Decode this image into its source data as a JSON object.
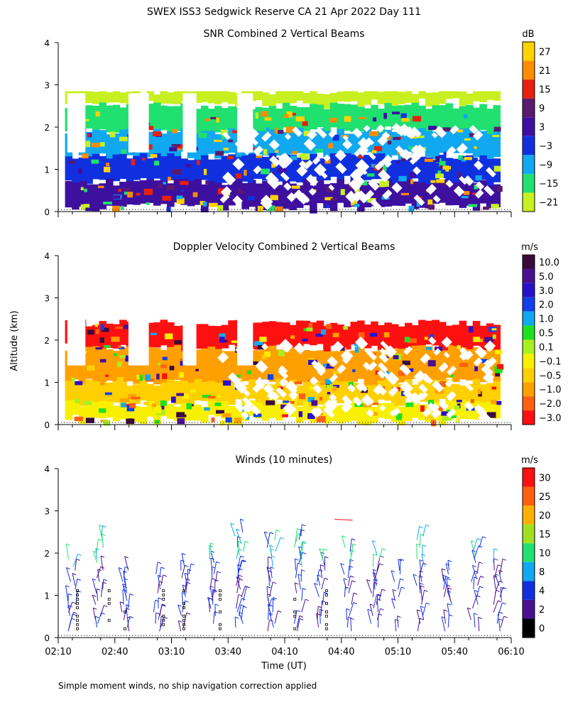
{
  "header": {
    "title": "SWEX ISS3 Sedgwick Reserve CA  21 Apr 2022 Day 111"
  },
  "footer": {
    "note": "Simple moment winds, no ship navigation correction applied"
  },
  "shared_axes": {
    "ylabel": "Altitude (km)",
    "xlabel": "Time (UT)",
    "x_ticks": [
      "02:10",
      "02:40",
      "03:10",
      "03:40",
      "04:10",
      "04:40",
      "05:10",
      "05:40",
      "06:10"
    ],
    "y_ticks": [
      "0",
      "1",
      "2",
      "3",
      "4"
    ],
    "ylim": [
      0,
      4
    ]
  },
  "chart_data": [
    {
      "type": "heatmap",
      "title": "SNR Combined 2 Vertical Beams",
      "units": "dB",
      "colorbar_labels": [
        "27",
        "21",
        "15",
        "9",
        "3",
        "−3",
        "−9",
        "−15",
        "−21"
      ],
      "colorbar_colors": [
        "#ffd200",
        "#ff8c00",
        "#e8200e",
        "#5a1a6e",
        "#3e10a0",
        "#1030e0",
        "#10a8f0",
        "#20e070",
        "#c8f020"
      ],
      "x_range": [
        "02:10",
        "06:10"
      ],
      "y_range_km": [
        0,
        4
      ],
      "bands": [
        {
          "color": "#c8f020",
          "y_from": 2.55,
          "y_to": 2.85
        },
        {
          "color": "#20e070",
          "y_from": 1.9,
          "y_to": 2.5
        },
        {
          "color": "#10a8f0",
          "y_from": 1.3,
          "y_to": 1.9
        },
        {
          "color": "#1030e0",
          "y_from": 0.7,
          "y_to": 1.3
        },
        {
          "color": "#3e10a0",
          "y_from": 0.1,
          "y_to": 0.7
        }
      ]
    },
    {
      "type": "heatmap",
      "title": "Doppler Velocity Combined 2 Vertical Beams",
      "units": "m/s",
      "colorbar_labels": [
        "10.0",
        "5.0",
        "3.0",
        "2.0",
        "1.0",
        "0.5",
        "0.1",
        "−0.1",
        "−0.5",
        "−1.0",
        "−2.0",
        "−3.0"
      ],
      "colorbar_colors": [
        "#3a0a3a",
        "#4a1090",
        "#2a10c8",
        "#1040e8",
        "#10a8f0",
        "#20e020",
        "#a8f020",
        "#f8f000",
        "#ffd000",
        "#ffa000",
        "#ff6010",
        "#ff1010"
      ],
      "x_range": [
        "02:10",
        "06:10"
      ],
      "y_range_km": [
        0,
        4
      ],
      "bands": [
        {
          "color": "#ff1010",
          "y_from": 1.8,
          "y_to": 2.4
        },
        {
          "color": "#ffa000",
          "y_from": 1.0,
          "y_to": 1.8
        },
        {
          "color": "#ffd000",
          "y_from": 0.5,
          "y_to": 1.0
        },
        {
          "color": "#f8f000",
          "y_from": 0.1,
          "y_to": 0.5
        }
      ]
    },
    {
      "type": "scatter",
      "title": "Winds (10 minutes)",
      "units": "m/s",
      "colorbar_labels": [
        "30",
        "25",
        "20",
        "15",
        "10",
        "8",
        "4",
        "2",
        "0"
      ],
      "colorbar_colors": [
        "#ff1010",
        "#ff6010",
        "#ffb000",
        "#a0e020",
        "#20e070",
        "#10a8f0",
        "#1030e0",
        "#4a1090",
        "#000000"
      ],
      "x_range": [
        "02:10",
        "06:10"
      ],
      "y_range_km": [
        0,
        4
      ]
    }
  ]
}
